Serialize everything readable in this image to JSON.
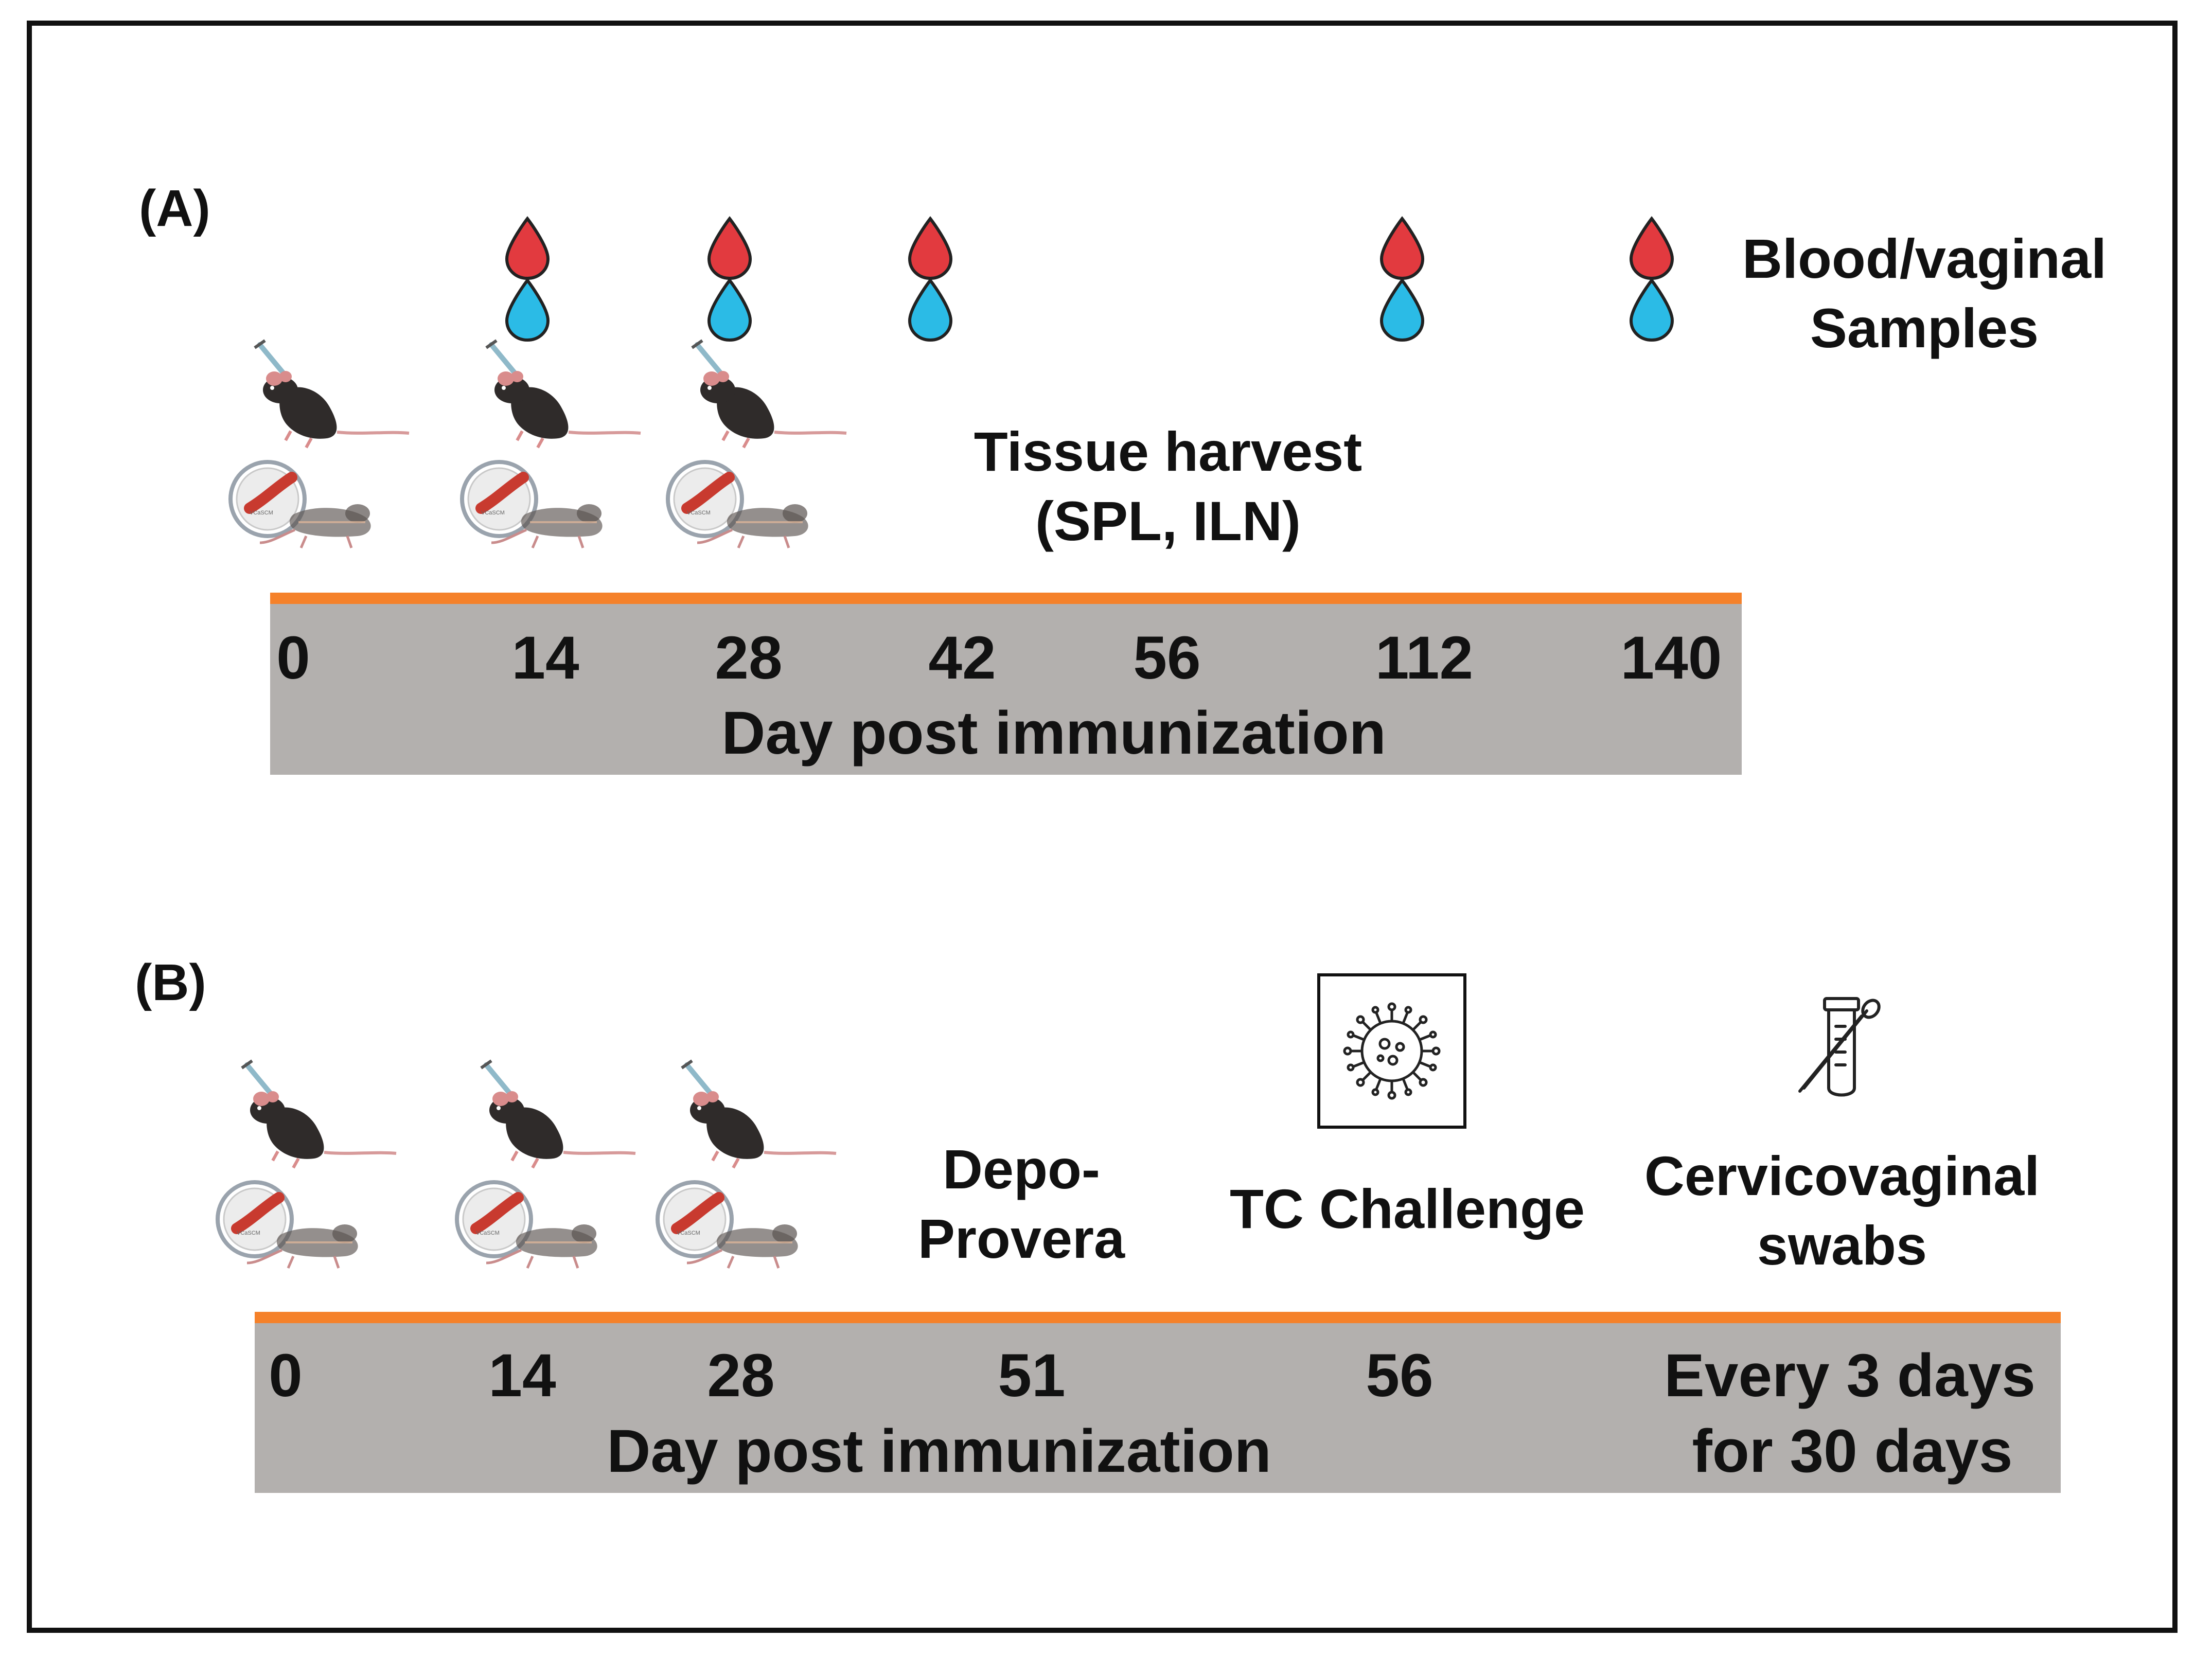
{
  "panel_a": {
    "label": "(A)",
    "legend": {
      "line1": "Blood/vaginal",
      "line2": "Samples"
    },
    "harvest": {
      "line1": "Tissue harvest",
      "line2": "(SPL, ILN)"
    },
    "ticks": [
      "0",
      "14",
      "28",
      "42",
      "56",
      "112",
      "140"
    ],
    "axis_title": "Day post immunization",
    "colors": {
      "blood": "#e23a3f",
      "vaginal": "#2bbbe6",
      "axis": "#f5812a",
      "bar": "#b3b0ae"
    },
    "icons": {
      "mouse": "mouse-icon",
      "vaccine": "vaccine-patch-icon",
      "blood": "blood-drop-icon",
      "vaginal": "vaginal-sample-drop-icon"
    }
  },
  "panel_b": {
    "label": "(B)",
    "depo": {
      "line1": "Depo-",
      "line2": "Provera"
    },
    "challenge": "TC Challenge",
    "swabs": {
      "line1": "Cervicovaginal",
      "line2": "swabs"
    },
    "ticks": [
      "0",
      "14",
      "28",
      "51",
      "56"
    ],
    "every": {
      "line1": "Every 3 days",
      "line2": "for 30 days"
    },
    "axis_title": "Day post immunization",
    "icons": {
      "virus": "virus-icon",
      "swab": "test-tube-swab-icon"
    }
  }
}
